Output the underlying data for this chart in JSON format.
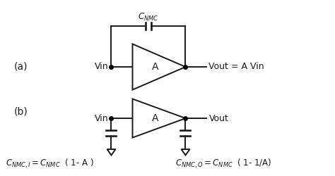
{
  "bg_color": "#ffffff",
  "line_color": "#1a1a1a",
  "label_a": "(a)",
  "label_b": "(b)",
  "amp_label": "A",
  "vout_a_label": "Vout = A Vin",
  "vout_b_label": "Vout",
  "cnmc_top": "$C_{NMC}$",
  "eq_left": "$C_{NMC,I} = C_{NMC}$  ( 1- A )",
  "eq_right": "$C_{NMC,O} = C_{NMC}$  ( 1- 1/A)"
}
